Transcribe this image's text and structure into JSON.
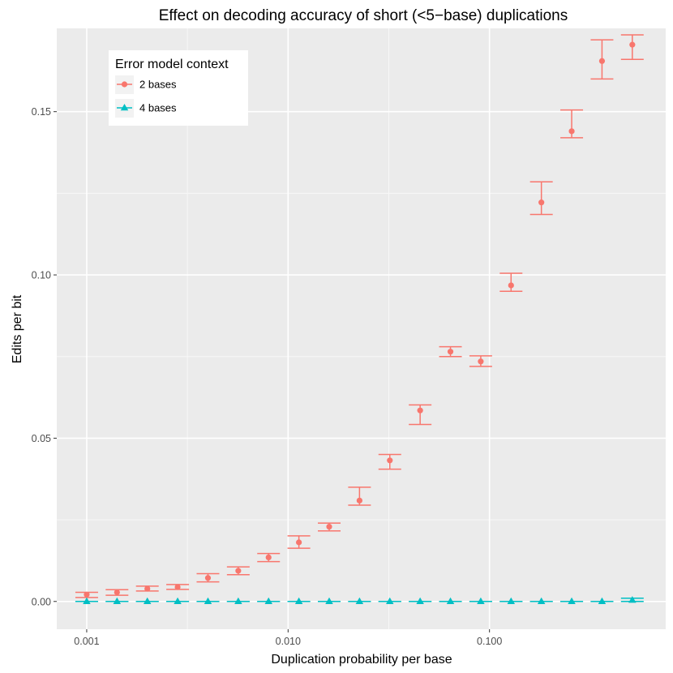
{
  "chart_data": {
    "type": "scatter",
    "title": "Effect on decoding accuracy of short (<5−base) duplications",
    "xlabel": "Duplication probability per base",
    "ylabel": "Edits per bit",
    "x_scale": "log10",
    "xlim": [
      0.00071,
      0.75
    ],
    "ylim": [
      -0.0085,
      0.1755
    ],
    "x_ticks": [
      0.001,
      0.01,
      0.1
    ],
    "x_tick_labels": [
      "0.001",
      "0.010",
      "0.100"
    ],
    "y_ticks": [
      0.0,
      0.05,
      0.1,
      0.15
    ],
    "y_tick_labels": [
      "0.00",
      "0.05",
      "0.10",
      "0.15"
    ],
    "grid": true,
    "legend": {
      "title": "Error model context",
      "position": "top-left",
      "entries": [
        "2 bases",
        "4 bases"
      ]
    },
    "x": [
      0.001,
      0.001414,
      0.002,
      0.002828,
      0.004,
      0.005657,
      0.008,
      0.011314,
      0.016,
      0.022627,
      0.032,
      0.045255,
      0.064,
      0.09051,
      0.128,
      0.181019,
      0.256,
      0.362039,
      0.512
    ],
    "series": [
      {
        "name": "2 bases",
        "color": "#F8766D",
        "marker": "circle",
        "values": [
          0.0021,
          0.0028,
          0.0039,
          0.0044,
          0.0072,
          0.0094,
          0.0135,
          0.0181,
          0.0229,
          0.0309,
          0.0432,
          0.0585,
          0.0765,
          0.0735,
          0.0968,
          0.1222,
          0.144,
          0.1655,
          0.1705
        ],
        "lower": [
          0.0012,
          0.0019,
          0.0032,
          0.0037,
          0.006,
          0.0082,
          0.0122,
          0.0163,
          0.0216,
          0.0295,
          0.0405,
          0.0542,
          0.075,
          0.072,
          0.095,
          0.1185,
          0.142,
          0.16,
          0.166
        ],
        "upper": [
          0.0028,
          0.0036,
          0.0047,
          0.0052,
          0.0085,
          0.0106,
          0.0147,
          0.0201,
          0.024,
          0.035,
          0.045,
          0.0602,
          0.078,
          0.0752,
          0.1005,
          0.1285,
          0.1505,
          0.172,
          0.1735
        ]
      },
      {
        "name": "4 bases",
        "color": "#00BFC4",
        "marker": "triangle",
        "values": [
          0.0,
          0.0,
          0.0,
          0.0,
          0.0,
          0.0,
          0.0,
          0.0,
          0.0,
          0.0,
          0.0,
          0.0,
          0.0,
          0.0,
          0.0,
          0.0,
          0.0,
          0.0,
          0.0004
        ],
        "lower": [
          0.0,
          0.0,
          0.0,
          0.0,
          0.0,
          0.0,
          0.0,
          0.0,
          0.0,
          0.0,
          0.0,
          0.0,
          0.0,
          0.0,
          0.0,
          0.0,
          0.0,
          0.0,
          0.0
        ],
        "upper": [
          0.0,
          0.0,
          0.0,
          0.0,
          0.0,
          0.0,
          0.0,
          0.0,
          0.0,
          0.0,
          0.0,
          0.0,
          0.0,
          0.0,
          0.0,
          0.0,
          0.0,
          0.0,
          0.001
        ]
      }
    ]
  }
}
